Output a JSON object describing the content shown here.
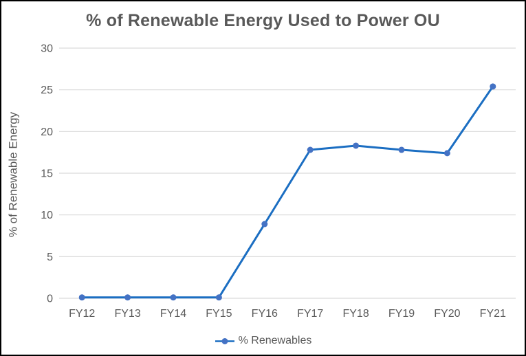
{
  "chart_data": {
    "type": "line",
    "title": "% of Renewable Energy Used to Power OU",
    "ylabel": "% of Renewable Energy",
    "xlabel": "",
    "categories": [
      "FY12",
      "FY13",
      "FY14",
      "FY15",
      "FY16",
      "FY17",
      "FY18",
      "FY19",
      "FY20",
      "FY21"
    ],
    "series": [
      {
        "name": "% Renewables",
        "values": [
          0.1,
          0.1,
          0.1,
          0.1,
          8.9,
          17.8,
          18.3,
          17.8,
          17.4,
          25.4
        ]
      }
    ],
    "ylim": [
      0,
      30
    ],
    "yticks": [
      0,
      5,
      10,
      15,
      20,
      25,
      30
    ],
    "grid": "horizontal",
    "legend_position": "bottom",
    "legend_label": "% Renewables",
    "colors": {
      "line": "#1b6ec2",
      "marker": "#4472c4",
      "gridline": "#d9d9d9",
      "text": "#595959",
      "background": "#ffffff",
      "border": "#000000"
    }
  }
}
